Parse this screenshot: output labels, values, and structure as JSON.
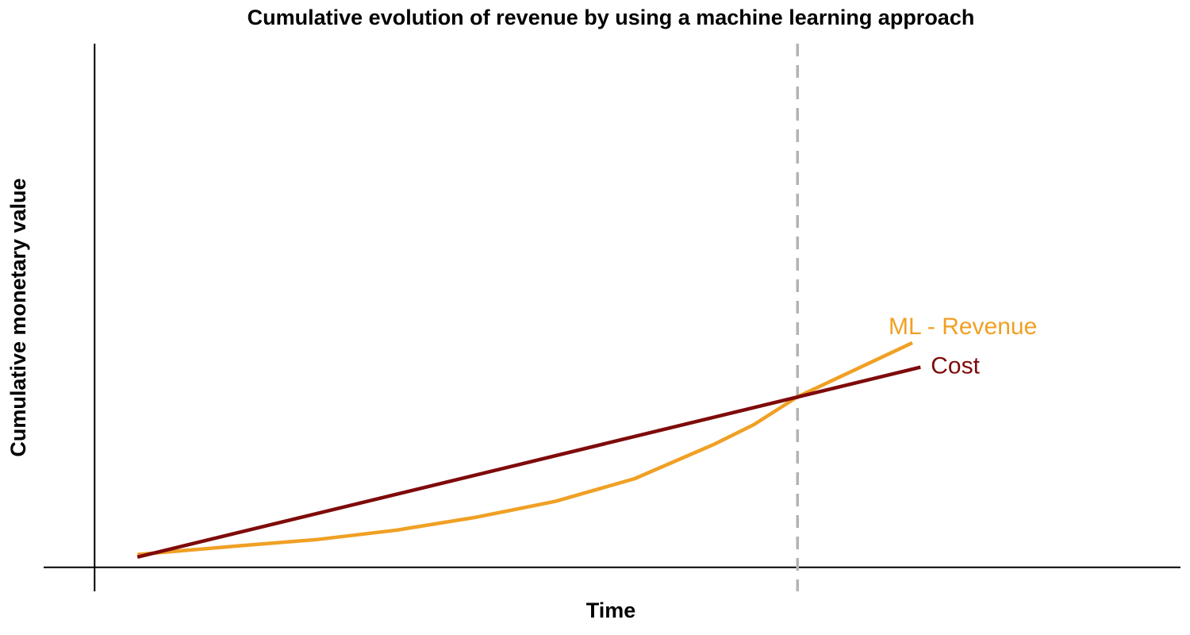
{
  "chart_data": {
    "type": "line",
    "title": "Cumulative evolution of revenue by using a machine learning approach",
    "xlabel": "Time",
    "ylabel": "Cumulative monetary value",
    "xlim": [
      -1.19,
      25.35
    ],
    "ylim": [
      -0.56,
      12.22
    ],
    "vline": 16.41,
    "vline_color": "#b3b3b3",
    "series": [
      {
        "name": "ML - Revenue",
        "color": "#f0a024",
        "x": [
          1,
          3.35,
          5.2,
          7.06,
          8.91,
          10.76,
          12.61,
          14.46,
          15.39,
          16.41,
          19.09
        ],
        "values": [
          0.3,
          0.5,
          0.65,
          0.87,
          1.17,
          1.54,
          2.07,
          2.87,
          3.33,
          3.98,
          5.24
        ]
      },
      {
        "name": "Cost",
        "color": "#7f0a0a",
        "x": [
          1,
          19.28
        ],
        "values": [
          0.24,
          4.67
        ]
      }
    ]
  }
}
